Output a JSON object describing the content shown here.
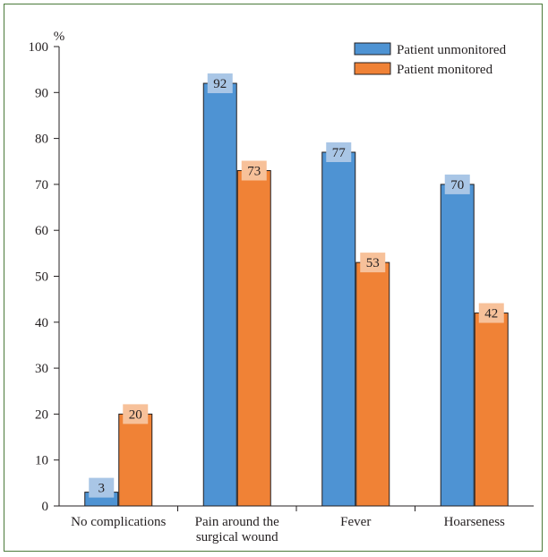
{
  "chart_data": {
    "type": "bar",
    "title": "",
    "xlabel": "",
    "ylabel": "%",
    "ylim": [
      0,
      100
    ],
    "yticks": [
      0,
      10,
      20,
      30,
      40,
      50,
      60,
      70,
      80,
      90,
      100
    ],
    "categories": [
      [
        "No complications"
      ],
      [
        "Pain around the",
        "surgical wound"
      ],
      [
        "Fever"
      ],
      [
        "Hoarseness"
      ]
    ],
    "series": [
      {
        "name": "Patient unmonitored",
        "values": [
          3,
          92,
          77,
          70
        ],
        "color": "#4e93d3",
        "label_bg": "#a9c6e6"
      },
      {
        "name": "Patient monitored",
        "values": [
          20,
          73,
          53,
          42
        ],
        "color": "#f08236",
        "label_bg": "#f7c19a"
      }
    ],
    "legend_position": "top-right",
    "grid": false
  }
}
